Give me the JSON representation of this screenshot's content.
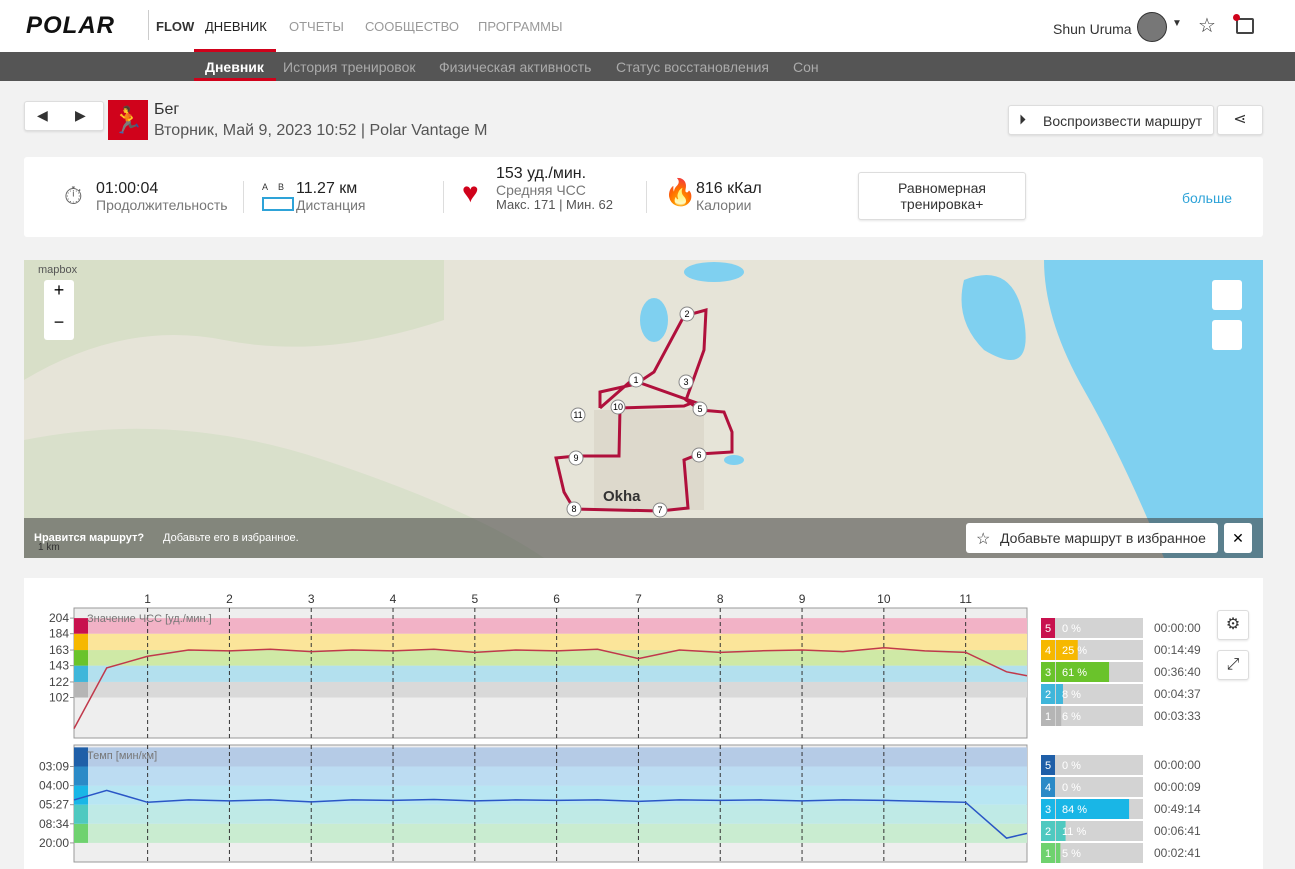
{
  "header": {
    "logo": "POLAR",
    "product": "FLOW",
    "nav": [
      "ДНЕВНИК",
      "ОТЧЕТЫ",
      "СООБЩЕСТВО",
      "ПРОГРАММЫ"
    ],
    "user": "Shun Uruma"
  },
  "subnav": [
    "Дневник",
    "История тренировок",
    "Физическая активность",
    "Статус восстановления",
    "Сон"
  ],
  "workout": {
    "sport": "Бег",
    "datetime": "Вторник, Май 9, 2023 10:52 | Polar Vantage M",
    "replay": "Воспроизвести маршрут"
  },
  "summary": {
    "duration": "01:00:04",
    "duration_label": "Продолжительность",
    "distance_ab": "A B",
    "distance": "11.27 км",
    "distance_label": "Дистанция",
    "hr": "153 уд./мин.",
    "hr_label": "Средняя ЧСС",
    "hr_range": "Макс. 171 | Мин. 62",
    "calories": "816 кКал",
    "calories_label": "Калории",
    "benefit": "Равномерная тренировка+",
    "more": "больше"
  },
  "map": {
    "attribution": "mapbox",
    "city": "Okha",
    "scale": "1 km",
    "prompt": "Нравится маршрут?",
    "prompt_hint": "Добавьте его в избранное.",
    "favorite": "Добавьте маршрут в избранное",
    "markers": [
      "1",
      "2",
      "3",
      "5",
      "6",
      "7",
      "8",
      "9",
      "10",
      "11"
    ]
  },
  "chart_data": [
    {
      "type": "line",
      "title": "Значение ЧСС [уд./мин.]",
      "laps": [
        1,
        2,
        3,
        4,
        5,
        6,
        7,
        8,
        9,
        10,
        11
      ],
      "xlim": [
        0.1,
        11.75
      ],
      "x": [
        0.1,
        0.5,
        1,
        1.5,
        2,
        2.5,
        3,
        3.5,
        4,
        4.5,
        5,
        5.5,
        6,
        6.5,
        7,
        7.5,
        8,
        8.5,
        9,
        9.5,
        10,
        10.5,
        11,
        11.5,
        11.75
      ],
      "series": [
        {
          "name": "ЧСС",
          "color": "#c0394b",
          "values": [
            62,
            140,
            155,
            163,
            162,
            164,
            161,
            163,
            162,
            164,
            160,
            163,
            162,
            164,
            152,
            163,
            160,
            162,
            163,
            161,
            166,
            162,
            160,
            135,
            130
          ]
        }
      ],
      "ylim": [
        50,
        217
      ],
      "yticks": [
        102,
        122,
        143,
        163,
        184,
        204
      ],
      "zone_bounds": [
        102,
        122,
        143,
        163,
        184,
        204
      ],
      "zone_colors": [
        "#d9d9d9",
        "#b3e0ee",
        "#cfe9a6",
        "#fbe59a",
        "#f2b2c6"
      ],
      "zones": {
        "names": [
          "5",
          "4",
          "3",
          "2",
          "1"
        ],
        "values": [
          0,
          25,
          61,
          8,
          6
        ],
        "value_labels": [
          "0 %",
          "25 %",
          "61 %",
          "8 %",
          "6 %"
        ],
        "times": [
          "00:00:00",
          "00:14:49",
          "00:36:40",
          "00:04:37",
          "00:03:33"
        ],
        "colors": [
          "#c8114e",
          "#f6b800",
          "#6ac32b",
          "#3fb6da",
          "#b5b5b5"
        ]
      }
    },
    {
      "type": "line",
      "title": "Темп [мин/км]",
      "laps": [
        1,
        2,
        3,
        4,
        5,
        6,
        7,
        8,
        9,
        10,
        11
      ],
      "xlim": [
        0.1,
        11.75
      ],
      "x": [
        0.1,
        0.5,
        1,
        1.5,
        2,
        2.5,
        3,
        3.5,
        4,
        4.5,
        5,
        5.5,
        6,
        6.5,
        7,
        7.5,
        8,
        8.5,
        9,
        9.5,
        10,
        10.5,
        11,
        11.5,
        11.75
      ],
      "series": [
        {
          "name": "Темп",
          "color": "#2a56c6",
          "values": [
            12,
            14,
            11.5,
            12,
            11.8,
            12,
            11.6,
            12,
            11.9,
            12.1,
            11.8,
            12,
            11.9,
            12,
            11.7,
            12,
            11.9,
            12,
            11.8,
            12,
            11.9,
            11.7,
            11.5,
            4,
            5
          ]
        }
      ],
      "ylim": [
        -1,
        23.5
      ],
      "yticks": [
        {
          "value": 19,
          "label": "03:09"
        },
        {
          "value": 15,
          "label": "04:00"
        },
        {
          "value": 11,
          "label": "05:27"
        },
        {
          "value": 7,
          "label": "08:34"
        },
        {
          "value": 3,
          "label": "20:00"
        }
      ],
      "zone_bounds": [
        3,
        7,
        11,
        15,
        19,
        23
      ],
      "zone_colors": [
        "#c9ecd0",
        "#bfeae6",
        "#b8e6f3",
        "#bcdcf2",
        "#b5cbe6"
      ],
      "zones": {
        "names": [
          "5",
          "4",
          "3",
          "2",
          "1"
        ],
        "values": [
          0,
          0,
          84,
          11,
          5
        ],
        "value_labels": [
          "0 %",
          "0 %",
          "84 %",
          "11 %",
          "5 %"
        ],
        "times": [
          "00:00:00",
          "00:00:09",
          "00:49:14",
          "00:06:41",
          "00:02:41"
        ],
        "colors": [
          "#1f5fa8",
          "#2b8ac7",
          "#19b6e6",
          "#4fc9c0",
          "#6fd26f"
        ]
      }
    }
  ]
}
